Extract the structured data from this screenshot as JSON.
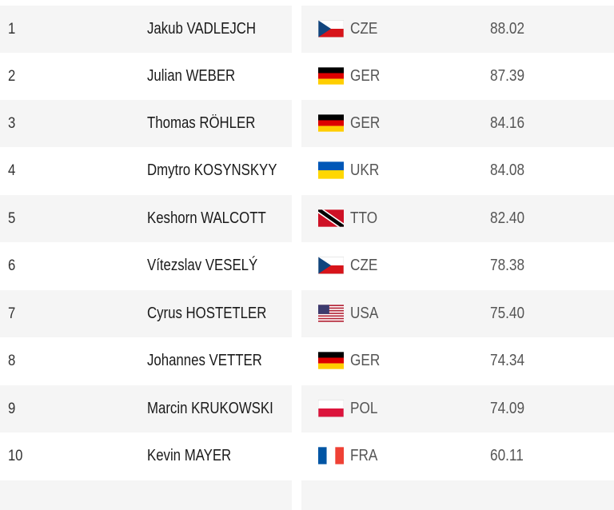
{
  "results": [
    {
      "rank": "1",
      "name": "Jakub VADLEJCH",
      "country": "CZE",
      "flag": "cze-flag-icon",
      "mark": "88.02"
    },
    {
      "rank": "2",
      "name": "Julian WEBER",
      "country": "GER",
      "flag": "ger-flag-icon",
      "mark": "87.39"
    },
    {
      "rank": "3",
      "name": "Thomas RÖHLER",
      "country": "GER",
      "flag": "ger-flag-icon",
      "mark": "84.16"
    },
    {
      "rank": "4",
      "name": "Dmytro KOSYNSKYY",
      "country": "UKR",
      "flag": "ukr-flag-icon",
      "mark": "84.08"
    },
    {
      "rank": "5",
      "name": "Keshorn WALCOTT",
      "country": "TTO",
      "flag": "tto-flag-icon",
      "mark": "82.40"
    },
    {
      "rank": "6",
      "name": "Vítezslav VESELÝ",
      "country": "CZE",
      "flag": "cze-flag-icon",
      "mark": "78.38"
    },
    {
      "rank": "7",
      "name": "Cyrus HOSTETLER",
      "country": "USA",
      "flag": "usa-flag-icon",
      "mark": "75.40"
    },
    {
      "rank": "8",
      "name": "Johannes VETTER",
      "country": "GER",
      "flag": "ger-flag-icon",
      "mark": "74.34"
    },
    {
      "rank": "9",
      "name": "Marcin KRUKOWSKI",
      "country": "POL",
      "flag": "pol-flag-icon",
      "mark": "74.09"
    },
    {
      "rank": "10",
      "name": "Kevin MAYER",
      "country": "FRA",
      "flag": "fra-flag-icon",
      "mark": "60.11"
    }
  ],
  "colors": {
    "row_shade": "#f5f5f5",
    "text_dark": "#1a1a1a",
    "text_muted": "#555555"
  }
}
